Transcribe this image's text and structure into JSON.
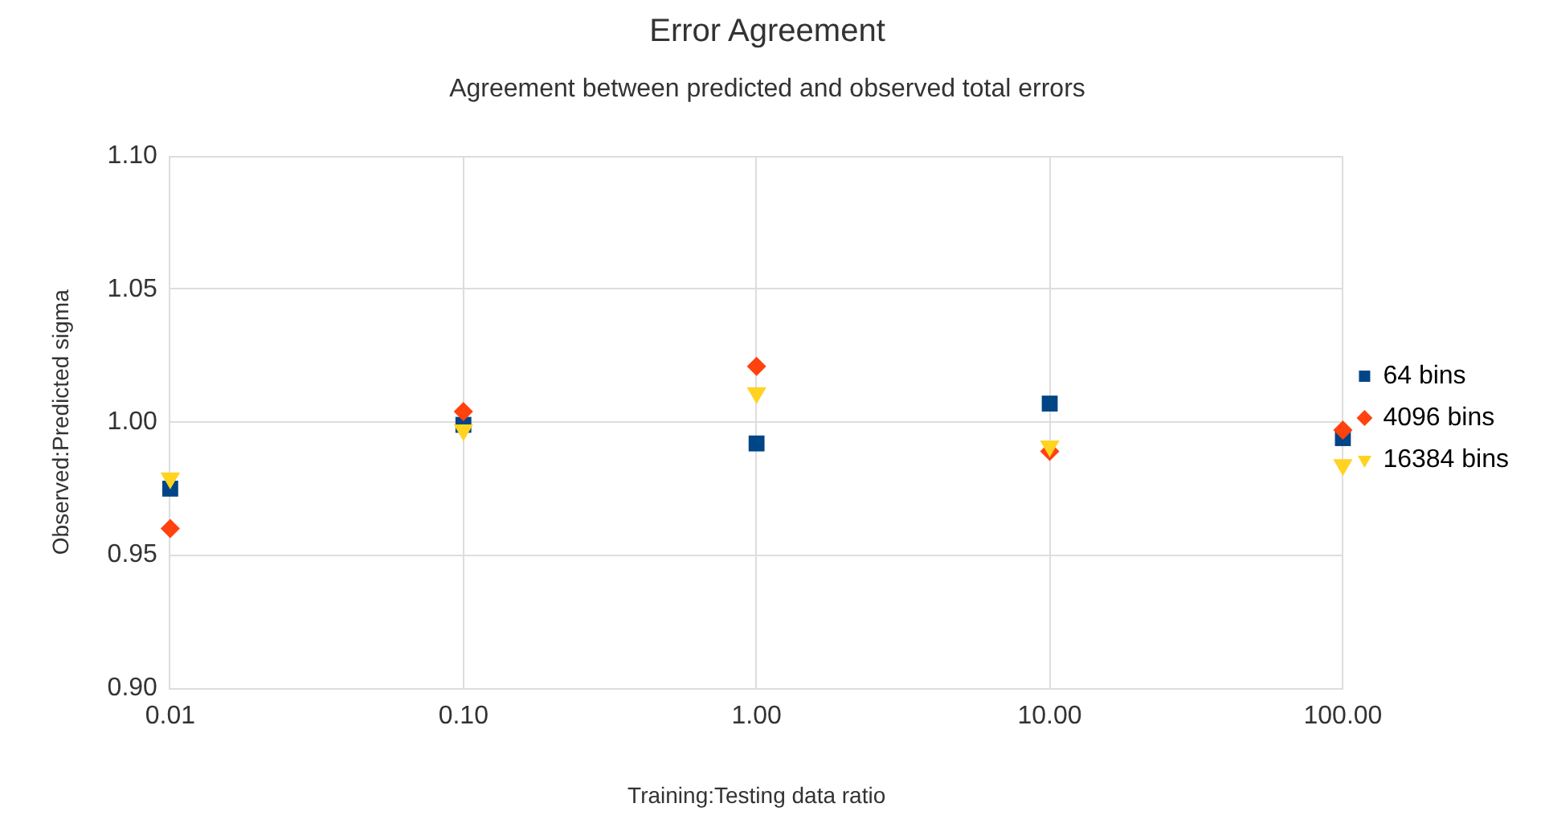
{
  "chart_data": {
    "type": "scatter",
    "title": "Error Agreement",
    "subtitle": "Agreement between predicted and observed total errors",
    "xlabel": "Training:Testing data ratio",
    "ylabel": "Observed:Predicted sigma",
    "x": [
      0.01,
      0.1,
      1,
      10,
      100
    ],
    "series": [
      {
        "name": "64 bins",
        "color": "#004586",
        "marker": "square",
        "values": [
          0.975,
          0.999,
          0.992,
          1.007,
          0.994
        ]
      },
      {
        "name": "4096 bins",
        "color": "#ff420e",
        "marker": "diamond",
        "values": [
          0.96,
          1.004,
          1.021,
          0.989,
          0.997
        ]
      },
      {
        "name": "16384 bins",
        "color": "#ffd320",
        "marker": "triangle",
        "values": [
          0.979,
          0.997,
          1.011,
          0.991,
          0.984
        ]
      }
    ],
    "log": "x",
    "xlim": [
      0.01,
      100
    ],
    "xticks": [
      {
        "value": 0.01,
        "label": "0.01"
      },
      {
        "value": 0.1,
        "label": "0.10"
      },
      {
        "value": 1,
        "label": "1.00"
      },
      {
        "value": 10,
        "label": "10.00"
      },
      {
        "value": 100,
        "label": "100.00"
      }
    ],
    "ylim": [
      0.9,
      1.1
    ],
    "yticks": [
      {
        "value": 0.9,
        "label": "0.90"
      },
      {
        "value": 0.95,
        "label": "0.95"
      },
      {
        "value": 1,
        "label": "1.00"
      },
      {
        "value": 1.05,
        "label": "1.05"
      },
      {
        "value": 1.1,
        "label": "1.10"
      }
    ],
    "grid": true,
    "legend": "right"
  }
}
